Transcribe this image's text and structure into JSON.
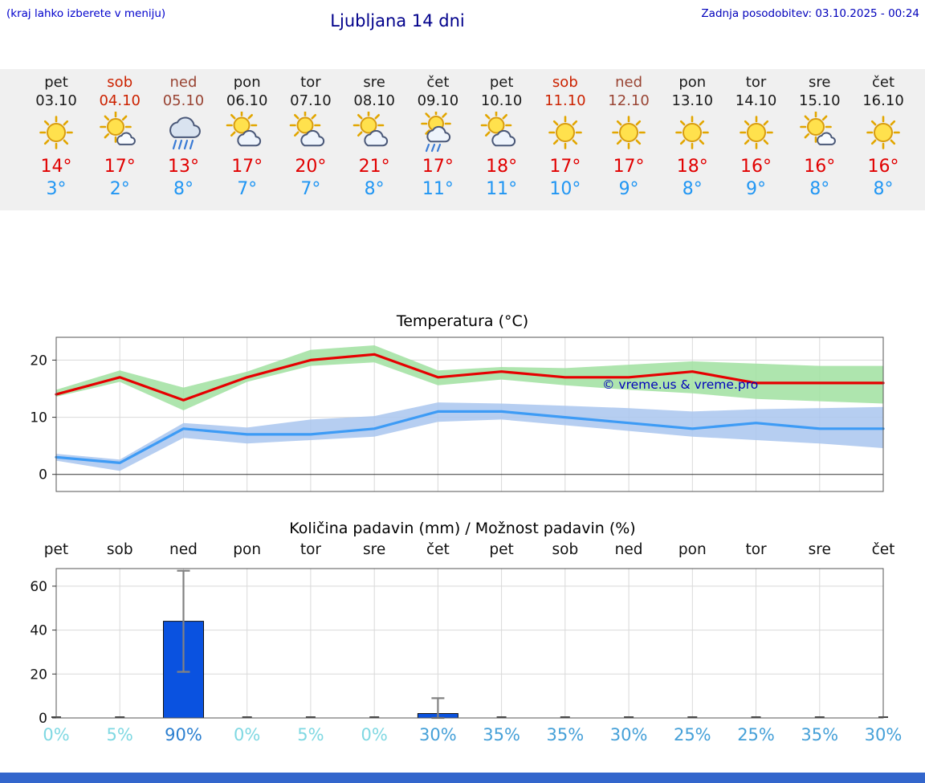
{
  "header": {
    "menu_hint": "(kraj lahko izberete v meniju)",
    "title": "Ljubljana 14 dni",
    "last_update": "Zadnja posodobitev: 03.10.2025 - 00:24"
  },
  "colors": {
    "high_temp": "#e10000",
    "low_temp": "#2196f3",
    "weekday_text": "#1a1a1a",
    "saturday_text": "#cc2200",
    "sunday_text": "#994433",
    "strip_background": "#f0f0f0",
    "footer_bar": "#3366cc",
    "watermark": "#0000bb"
  },
  "days": [
    {
      "name": "pet",
      "date": "03.10",
      "day_type": "weekday",
      "icon": "sun",
      "hi": "14°",
      "lo": "3°"
    },
    {
      "name": "sob",
      "date": "04.10",
      "day_type": "saturday",
      "icon": "sun-small-cloud",
      "hi": "17°",
      "lo": "2°"
    },
    {
      "name": "ned",
      "date": "05.10",
      "day_type": "sunday",
      "icon": "rain-cloud",
      "hi": "13°",
      "lo": "8°"
    },
    {
      "name": "pon",
      "date": "06.10",
      "day_type": "weekday",
      "icon": "sun-cloud",
      "hi": "17°",
      "lo": "7°"
    },
    {
      "name": "tor",
      "date": "07.10",
      "day_type": "weekday",
      "icon": "sun-cloud",
      "hi": "20°",
      "lo": "7°"
    },
    {
      "name": "sre",
      "date": "08.10",
      "day_type": "weekday",
      "icon": "sun-cloud",
      "hi": "21°",
      "lo": "8°"
    },
    {
      "name": "čet",
      "date": "09.10",
      "day_type": "weekday",
      "icon": "sun-cloud-rain",
      "hi": "17°",
      "lo": "11°"
    },
    {
      "name": "pet",
      "date": "10.10",
      "day_type": "weekday",
      "icon": "sun-cloud",
      "hi": "18°",
      "lo": "11°"
    },
    {
      "name": "sob",
      "date": "11.10",
      "day_type": "saturday",
      "icon": "sun",
      "hi": "17°",
      "lo": "10°"
    },
    {
      "name": "ned",
      "date": "12.10",
      "day_type": "sunday",
      "icon": "sun",
      "hi": "17°",
      "lo": "9°"
    },
    {
      "name": "pon",
      "date": "13.10",
      "day_type": "weekday",
      "icon": "sun",
      "hi": "18°",
      "lo": "8°"
    },
    {
      "name": "tor",
      "date": "14.10",
      "day_type": "weekday",
      "icon": "sun",
      "hi": "16°",
      "lo": "9°"
    },
    {
      "name": "sre",
      "date": "15.10",
      "day_type": "weekday",
      "icon": "sun-small-cloud",
      "hi": "16°",
      "lo": "8°"
    },
    {
      "name": "čet",
      "date": "16.10",
      "day_type": "weekday",
      "icon": "sun",
      "hi": "16°",
      "lo": "8°"
    }
  ],
  "chart_data": [
    {
      "type": "line",
      "title": "Temperatura (°C)",
      "x_labels": [
        "pet 03.10",
        "sob 04.10",
        "ned 05.10",
        "pon 06.10",
        "tor 07.10",
        "sre 08.10",
        "čet 09.10",
        "pet 10.10",
        "sob 11.10",
        "ned 12.10",
        "pon 13.10",
        "tor 14.10",
        "sre 15.10",
        "čet 16.10"
      ],
      "ylim": [
        -3,
        24
      ],
      "yticks": [
        0,
        10,
        20
      ],
      "grid": true,
      "series": [
        {
          "name": "max-temperature",
          "color": "#e60000",
          "values": [
            14,
            17,
            13,
            17,
            20,
            21,
            17,
            18,
            17,
            17,
            18,
            16,
            16,
            16
          ]
        },
        {
          "name": "min-temperature",
          "color": "#3d9bf5",
          "values": [
            3,
            2,
            8,
            7,
            7,
            8,
            11,
            11,
            10,
            9,
            8,
            9,
            8,
            8
          ]
        }
      ],
      "bands": [
        {
          "name": "max-temperature-range",
          "color": "#a0e0a0",
          "upper": [
            14.8,
            18.2,
            15.2,
            18,
            21.8,
            22.6,
            18.2,
            18.8,
            18.6,
            19.2,
            19.8,
            19.4,
            19,
            19
          ],
          "lower": [
            13.6,
            16.2,
            11.2,
            16.2,
            19,
            19.6,
            15.6,
            16.6,
            15.6,
            14.8,
            14.2,
            13.2,
            12.8,
            12.4
          ]
        },
        {
          "name": "min-temperature-range",
          "color": "#a9c6ef",
          "upper": [
            3.6,
            2.6,
            9,
            8.2,
            9.6,
            10.2,
            12.6,
            12.4,
            12,
            11.6,
            11,
            11.4,
            11.6,
            11.8
          ],
          "lower": [
            2.4,
            0.6,
            6.4,
            5.4,
            6,
            6.6,
            9.2,
            9.6,
            8.6,
            7.6,
            6.6,
            6,
            5.4,
            4.6
          ]
        }
      ],
      "watermark": "© vreme.us & vreme.pro"
    },
    {
      "type": "bar",
      "title": "Količina padavin (mm) / Možnost padavin (%)",
      "categories": [
        "pet",
        "sob",
        "ned",
        "pon",
        "tor",
        "sre",
        "čet",
        "pet",
        "sob",
        "ned",
        "pon",
        "tor",
        "sre",
        "čet"
      ],
      "values": [
        0,
        0,
        44,
        0,
        0,
        0,
        2,
        0,
        0,
        0,
        0,
        0,
        0,
        0
      ],
      "error_low": [
        0,
        0,
        21,
        0,
        0,
        0,
        0,
        0,
        0,
        0,
        0,
        0,
        0,
        0
      ],
      "error_high": [
        0,
        0,
        67,
        0,
        0,
        0,
        9,
        0,
        0,
        0,
        0,
        0,
        0,
        0
      ],
      "ylim": [
        0,
        68
      ],
      "yticks": [
        0,
        20,
        40,
        60
      ],
      "bar_color": "#0a52e0",
      "probabilities": [
        {
          "label": "0%",
          "color": "#7fd8e2"
        },
        {
          "label": "5%",
          "color": "#7fd8e2"
        },
        {
          "label": "90%",
          "color": "#2b7fd0"
        },
        {
          "label": "0%",
          "color": "#7fd8e2"
        },
        {
          "label": "5%",
          "color": "#7fd8e2"
        },
        {
          "label": "0%",
          "color": "#7fd8e2"
        },
        {
          "label": "30%",
          "color": "#45a0d8"
        },
        {
          "label": "35%",
          "color": "#45a0d8"
        },
        {
          "label": "35%",
          "color": "#45a0d8"
        },
        {
          "label": "30%",
          "color": "#45a0d8"
        },
        {
          "label": "25%",
          "color": "#45a0d8"
        },
        {
          "label": "25%",
          "color": "#45a0d8"
        },
        {
          "label": "35%",
          "color": "#45a0d8"
        },
        {
          "label": "30%",
          "color": "#45a0d8"
        }
      ]
    }
  ]
}
